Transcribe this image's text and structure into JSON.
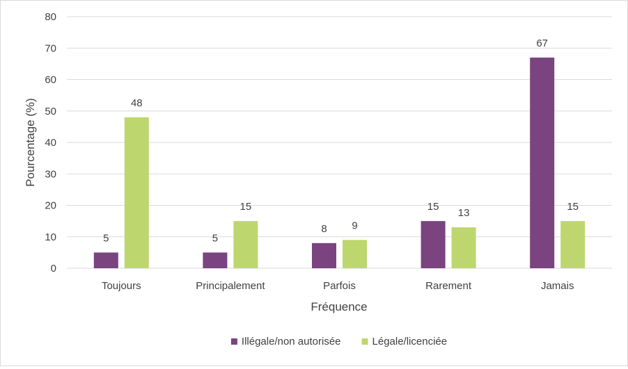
{
  "chart_data": {
    "type": "bar",
    "title": "",
    "xlabel": "Fréquence",
    "ylabel": "Pourcentage (%)",
    "ylim": [
      0,
      80
    ],
    "yticks": [
      0,
      10,
      20,
      30,
      40,
      50,
      60,
      70,
      80
    ],
    "grid": true,
    "legend_position": "bottom",
    "categories": [
      "Toujours",
      "Principalement",
      "Parfois",
      "Rarement",
      "Jamais"
    ],
    "series": [
      {
        "name": "Illégale/non autorisée",
        "color": "#7B4380",
        "values": [
          5,
          5,
          8,
          15,
          67
        ]
      },
      {
        "name": "Légale/licenciée",
        "color": "#BDD76E",
        "values": [
          48,
          15,
          9,
          13,
          15
        ]
      }
    ]
  }
}
